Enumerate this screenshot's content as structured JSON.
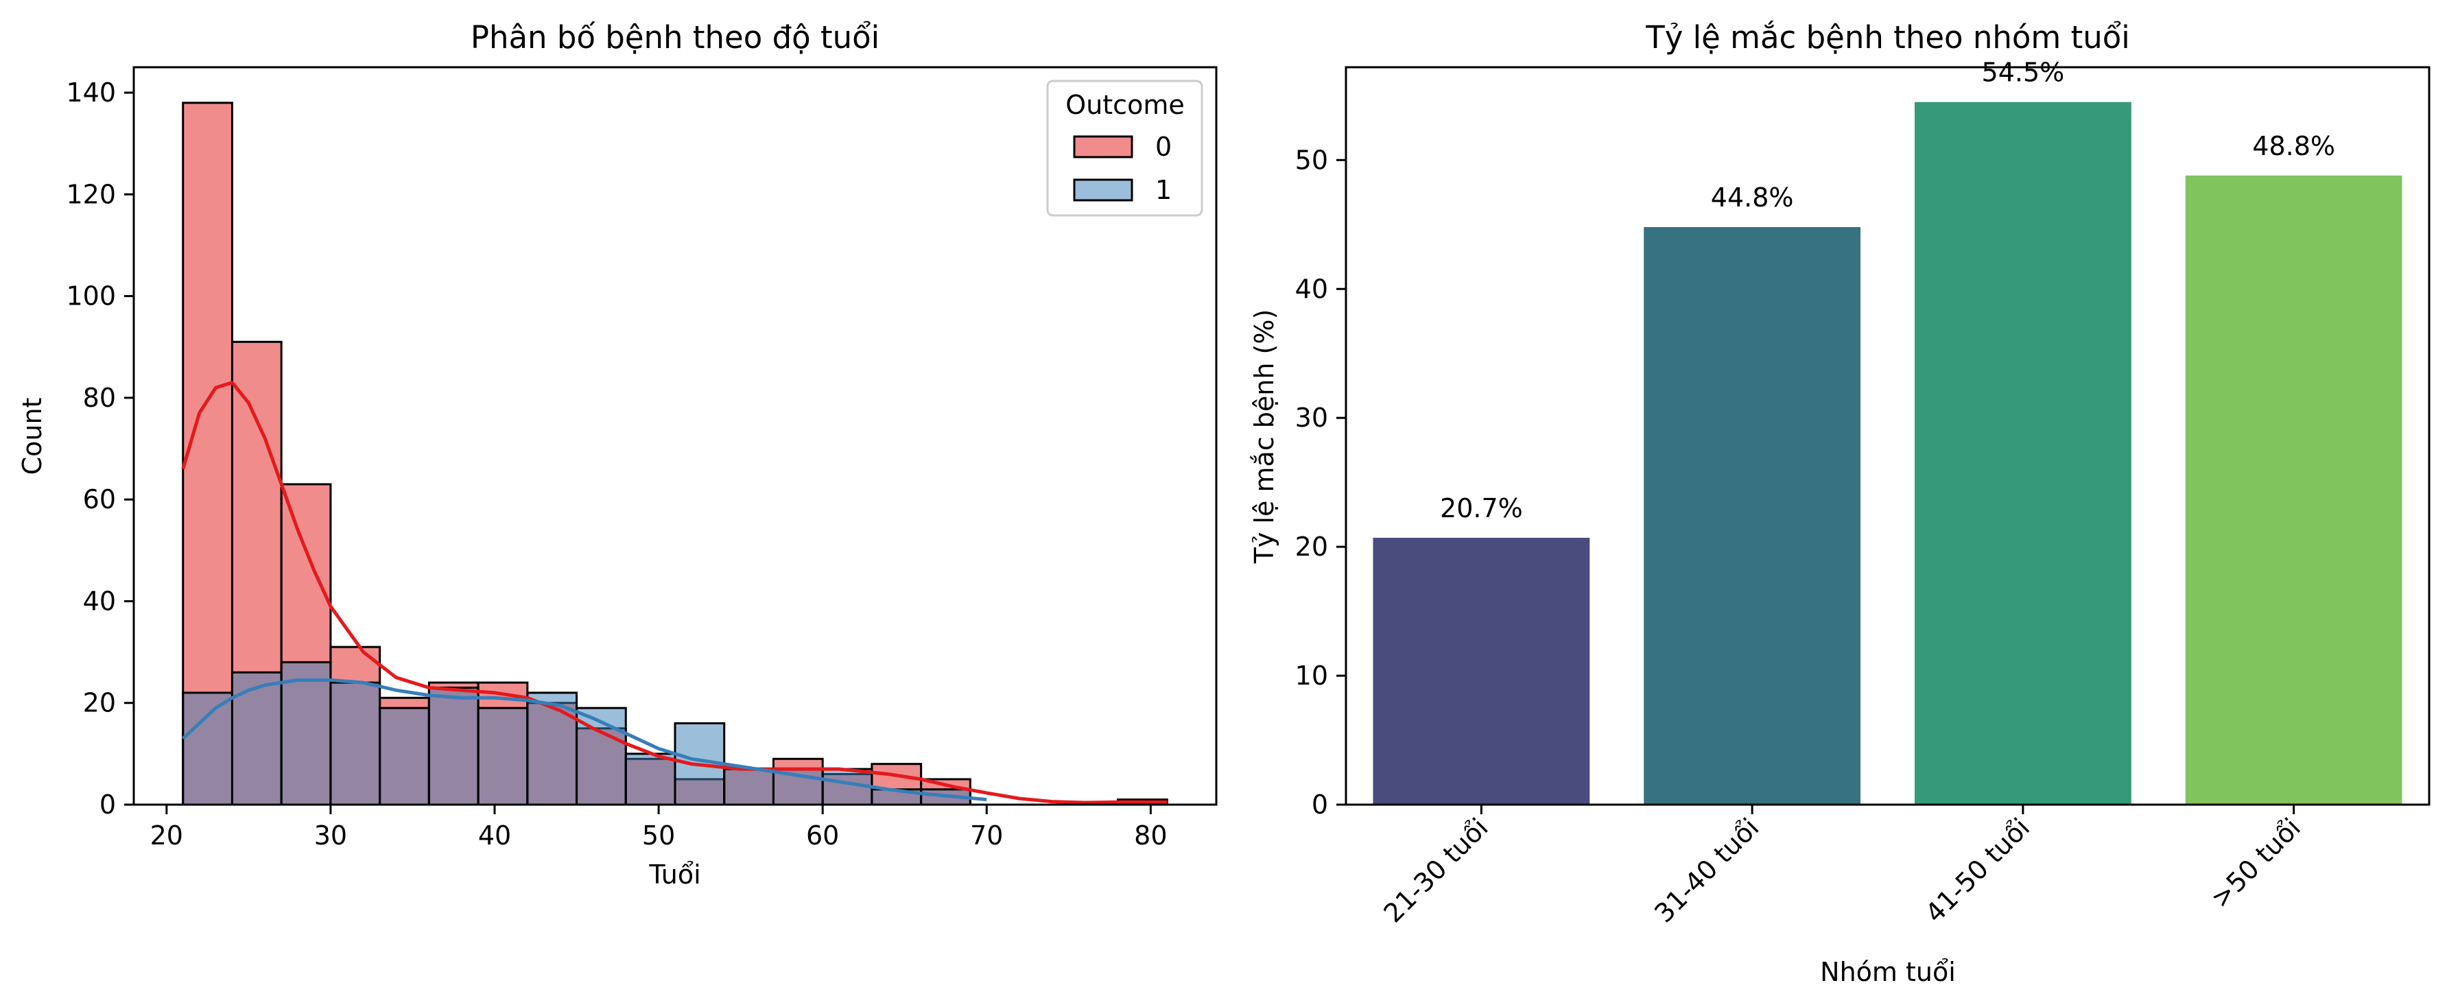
{
  "charts": {
    "left": {
      "title": "Phân bố bệnh theo độ tuổi",
      "xlabel": "Tuổi",
      "ylabel": "Count",
      "xticks": [
        "20",
        "30",
        "40",
        "50",
        "60",
        "70",
        "80"
      ],
      "yticks": [
        "0",
        "20",
        "40",
        "60",
        "80",
        "100",
        "120",
        "140"
      ],
      "legend_title": "Outcome",
      "legend_items": [
        "0",
        "1"
      ]
    },
    "right": {
      "title": "Tỷ lệ mắc bệnh theo nhóm tuổi",
      "xlabel": "Nhóm tuổi",
      "ylabel": "Tỷ lệ mắc bệnh (%)",
      "yticks": [
        "0",
        "10",
        "20",
        "30",
        "40",
        "50"
      ],
      "categories": [
        "21-30 tuổi",
        "31-40 tuổi",
        "41-50 tuổi",
        ">50 tuổi"
      ],
      "labels": [
        "20.7%",
        "44.8%",
        "54.5%",
        "48.8%"
      ]
    }
  },
  "chart_data": [
    {
      "type": "histogram",
      "title": "Phân bố bệnh theo độ tuổi",
      "xlabel": "Tuổi",
      "ylabel": "Count",
      "xlim": [
        18.0,
        84.0
      ],
      "ylim": [
        0,
        145
      ],
      "bin_edges": [
        21,
        24,
        27,
        30,
        33,
        36,
        39,
        42,
        45,
        48,
        51,
        54,
        57,
        60,
        63,
        66,
        69,
        72,
        75,
        78,
        81
      ],
      "legend": {
        "title": "Outcome",
        "position": "top-right"
      },
      "series": [
        {
          "name": "0",
          "color": "#e41a1c",
          "counts": [
            138,
            91,
            63,
            31,
            21,
            24,
            24,
            20,
            15,
            9,
            5,
            7,
            9,
            6,
            8,
            5,
            0,
            0,
            0,
            1
          ],
          "kde": [
            [
              21,
              66
            ],
            [
              22,
              77
            ],
            [
              23,
              82
            ],
            [
              24,
              83
            ],
            [
              25,
              79
            ],
            [
              26,
              72
            ],
            [
              27,
              63
            ],
            [
              28,
              54
            ],
            [
              29,
              46
            ],
            [
              30,
              39
            ],
            [
              32,
              30
            ],
            [
              34,
              25
            ],
            [
              36,
              23
            ],
            [
              38,
              22.5
            ],
            [
              40,
              22
            ],
            [
              42,
              21
            ],
            [
              44,
              18.5
            ],
            [
              46,
              15
            ],
            [
              48,
              12
            ],
            [
              50,
              9.5
            ],
            [
              52,
              8
            ],
            [
              55,
              7
            ],
            [
              58,
              7
            ],
            [
              61,
              7
            ],
            [
              64,
              6
            ],
            [
              66,
              5
            ],
            [
              68,
              3.5
            ],
            [
              70,
              2.3
            ],
            [
              72,
              1.2
            ],
            [
              74,
              0.6
            ],
            [
              76,
              0.4
            ],
            [
              78,
              0.5
            ],
            [
              81,
              0.5
            ]
          ]
        },
        {
          "name": "1",
          "color": "#377eb8",
          "counts": [
            22,
            26,
            28,
            24,
            19,
            23,
            19,
            22,
            19,
            10,
            16,
            7,
            7,
            7,
            3,
            3,
            0,
            0,
            0,
            0
          ],
          "kde": [
            [
              21,
              13
            ],
            [
              22,
              16
            ],
            [
              23,
              19
            ],
            [
              24,
              21
            ],
            [
              25,
              22.5
            ],
            [
              26,
              23.5
            ],
            [
              28,
              24.5
            ],
            [
              30,
              24.5
            ],
            [
              32,
              24
            ],
            [
              34,
              22.5
            ],
            [
              36,
              21.5
            ],
            [
              38,
              21
            ],
            [
              40,
              21
            ],
            [
              42,
              20.5
            ],
            [
              44,
              19.5
            ],
            [
              46,
              17
            ],
            [
              48,
              14
            ],
            [
              50,
              11
            ],
            [
              52,
              9
            ],
            [
              54,
              8
            ],
            [
              56,
              7
            ],
            [
              58,
              6
            ],
            [
              60,
              5
            ],
            [
              62,
              4
            ],
            [
              64,
              3
            ],
            [
              66,
              2.2
            ],
            [
              68,
              1.6
            ],
            [
              70,
              1
            ]
          ]
        }
      ]
    },
    {
      "type": "bar",
      "title": "Tỷ lệ mắc bệnh theo nhóm tuổi",
      "xlabel": "Nhóm tuổi",
      "ylabel": "Tỷ lệ mắc bệnh (%)",
      "ylim": [
        0,
        57.2
      ],
      "categories": [
        "21-30 tuổi",
        "31-40 tuổi",
        "41-50 tuổi",
        ">50 tuổi"
      ],
      "values": [
        20.7,
        44.8,
        54.5,
        48.8
      ],
      "colors": [
        "#4a4c7e",
        "#367280",
        "#349a7a",
        "#80c45e"
      ]
    }
  ]
}
